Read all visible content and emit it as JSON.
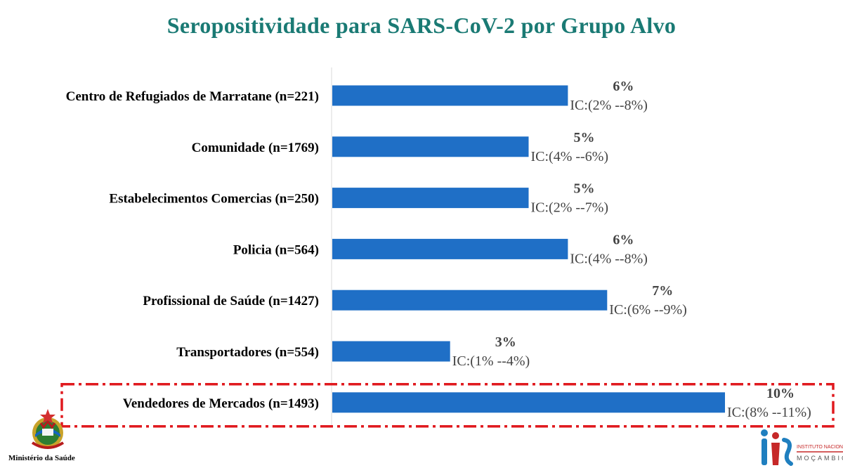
{
  "title": "Seropositividade para SARS-CoV-2 por Grupo Alvo",
  "colors": {
    "title": "#1a7a74",
    "bar": "#1f6fc6",
    "label": "#000000",
    "value": "#444444",
    "highlight": "#e0191e",
    "axis": "#d9d9d9"
  },
  "chart_data": {
    "type": "bar",
    "orientation": "horizontal",
    "xlim": [
      0,
      10
    ],
    "grid": false,
    "categories": [
      "Centro de Refugiados de Marratane (n=221)",
      "Comunidade (n=1769)",
      "Estabelecimentos Comercias (n=250)",
      "Policia (n=564)",
      "Profissional de Saúde (n=1427)",
      "Transportadores (n=554)",
      "Vendedores de Mercados (n=1493)"
    ],
    "values": [
      6,
      5,
      5,
      6,
      7,
      3,
      10
    ],
    "value_labels": [
      "6%",
      "5%",
      "5%",
      "6%",
      "7%",
      "3%",
      "10%"
    ],
    "ci_labels": [
      "IC:(2% --8%)",
      "IC:(4% --6%)",
      "IC:(2% --7%)",
      "IC:(4% --8%)",
      "IC:(6% --9%)",
      "IC:(1% --4%)",
      "IC:(8% --11%)"
    ],
    "highlighted_category": "Vendedores de Mercados (n=1493)"
  },
  "logos": {
    "ministry_label": "Ministério da Saúde",
    "ins_label": "INSTITUTO NACIONAL DE SAÚDE",
    "ins_country": "MOÇAMBIQUE"
  }
}
